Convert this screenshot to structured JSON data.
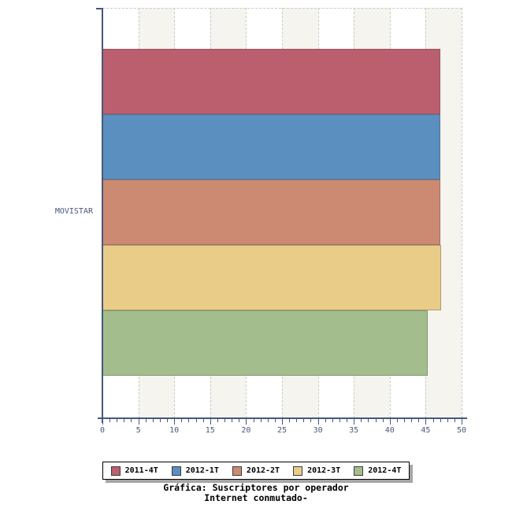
{
  "chart_data": {
    "type": "bar",
    "orientation": "horizontal",
    "title": "Gráfica: Suscriptores por operador",
    "subtitle": "Internet conmutado-",
    "categories": [
      "MOVISTAR"
    ],
    "series": [
      {
        "name": "2011-4T",
        "color": "#bb5f6e",
        "values": [
          47
        ]
      },
      {
        "name": "2012-1T",
        "color": "#5b8fc0",
        "values": [
          47
        ]
      },
      {
        "name": "2012-2T",
        "color": "#cc8a72",
        "values": [
          47
        ]
      },
      {
        "name": "2012-3T",
        "color": "#e9cc88",
        "values": [
          47.2
        ]
      },
      {
        "name": "2012-4T",
        "color": "#a3be8c",
        "values": [
          45.3
        ]
      }
    ],
    "xlim": [
      0,
      50
    ],
    "x_tick_step": 5,
    "x_minor_tick_step": 1,
    "x_tick_labels": [
      "0",
      "5",
      "10",
      "15",
      "20",
      "25",
      "30",
      "35",
      "40",
      "45",
      "50"
    ],
    "legend_position": "bottom",
    "grid": "vertical-dashed-major",
    "background_bands_color": "#f5f4ee",
    "axis_color": "#46587a",
    "tick_label_color": "#4a5a7a"
  }
}
